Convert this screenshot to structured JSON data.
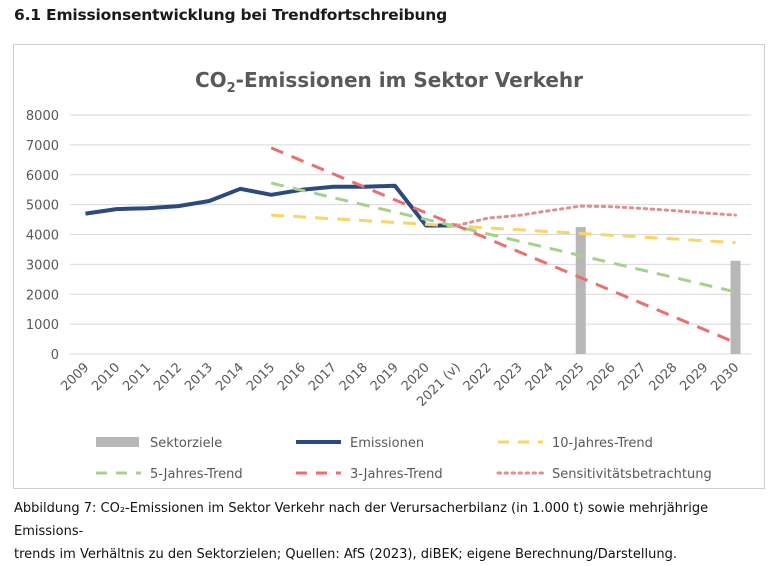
{
  "section_heading": "6.1 Emissionsentwicklung bei Trendfortschreibung",
  "caption": {
    "line1": "Abbildung 7: CO₂-Emissionen im Sektor Verkehr nach der Verursacherbilanz (in 1.000 t) sowie mehrjährige Emissions-",
    "line2": "trends im Verhältnis zu den Sektorzielen; Quellen: AfS (2023), diBEK; eigene Berechnung/Darstellung."
  },
  "colors": {
    "sektorziele": "#b7b7b7",
    "emissionen": "#2e4a7d",
    "trend10": "#f7d567",
    "trend5": "#a8d08d",
    "trend3": "#ea6f6f",
    "sensitivitaet": "#de9090",
    "grid": "#d9d9d9",
    "axis_text": "#595959"
  },
  "chart_data": {
    "type": "line",
    "title": "CO₂-Emissionen im Sektor Verkehr",
    "xlabel": "",
    "ylabel": "",
    "ylim": [
      0,
      8000
    ],
    "yticks": [
      "0",
      "1000",
      "2000",
      "3000",
      "4000",
      "5000",
      "6000",
      "7000",
      "8000"
    ],
    "grid": true,
    "legend_position": "bottom",
    "categories": [
      "2009",
      "2010",
      "2011",
      "2012",
      "2013",
      "2014",
      "2015",
      "2016",
      "2017",
      "2018",
      "2019",
      "2020",
      "2021 (v)",
      "2022",
      "2023",
      "2024",
      "2025",
      "2026",
      "2027",
      "2028",
      "2029",
      "2030"
    ],
    "series": [
      {
        "name": "Sektorziele",
        "kind": "bar",
        "points": [
          [
            "2025",
            4250
          ],
          [
            "2030",
            3120
          ]
        ]
      },
      {
        "name": "Emissionen",
        "kind": "line",
        "style": "solid",
        "points": [
          [
            "2009",
            4700
          ],
          [
            "2010",
            4850
          ],
          [
            "2011",
            4880
          ],
          [
            "2012",
            4950
          ],
          [
            "2013",
            5120
          ],
          [
            "2014",
            5530
          ],
          [
            "2015",
            5330
          ],
          [
            "2016",
            5500
          ],
          [
            "2017",
            5600
          ],
          [
            "2018",
            5600
          ],
          [
            "2019",
            5630
          ],
          [
            "2020",
            4300
          ],
          [
            "2021 (v)",
            4300
          ]
        ]
      },
      {
        "name": "10-Jahres-Trend",
        "kind": "line",
        "style": "dashed",
        "points": [
          [
            "2015",
            4650
          ],
          [
            "2030",
            3730
          ]
        ]
      },
      {
        "name": "5-Jahres-Trend",
        "kind": "line",
        "style": "dashed",
        "points": [
          [
            "2015",
            5720
          ],
          [
            "2030",
            2080
          ]
        ]
      },
      {
        "name": "3-Jahres-Trend",
        "kind": "line",
        "style": "dashed",
        "points": [
          [
            "2015",
            6900
          ],
          [
            "2030",
            380
          ]
        ]
      },
      {
        "name": "Sensitivitätsbetrachtung",
        "kind": "line",
        "style": "dotted",
        "points": [
          [
            "2021 (v)",
            4300
          ],
          [
            "2022",
            4550
          ],
          [
            "2023",
            4640
          ],
          [
            "2024",
            4800
          ],
          [
            "2025",
            4950
          ],
          [
            "2026",
            4930
          ],
          [
            "2027",
            4870
          ],
          [
            "2028",
            4800
          ],
          [
            "2029",
            4720
          ],
          [
            "2030",
            4650
          ]
        ]
      }
    ],
    "legend": [
      {
        "label": "Sektorziele",
        "series": "Sektorziele"
      },
      {
        "label": "Emissionen",
        "series": "Emissionen"
      },
      {
        "label": "10-Jahres-Trend",
        "series": "10-Jahres-Trend"
      },
      {
        "label": "5-Jahres-Trend",
        "series": "5-Jahres-Trend"
      },
      {
        "label": "3-Jahres-Trend",
        "series": "3-Jahres-Trend"
      },
      {
        "label": "Sensitivitätsbetrachtung",
        "series": "Sensitivitätsbetrachtung"
      }
    ]
  }
}
